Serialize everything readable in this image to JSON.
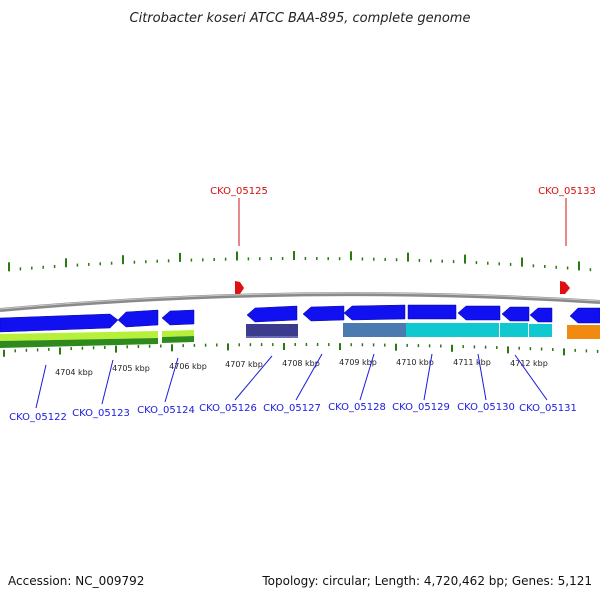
{
  "title": "Citrobacter koseri ATCC BAA-895, complete genome",
  "footer": {
    "accession": "Accession: NC_009792",
    "summary": "Topology: circular; Length: 4,720,462 bp; Genes: 5,121"
  },
  "colors": {
    "gene_blue": "#1010f0",
    "label_blue": "#1a1ae0",
    "highlight_red": "#d01010",
    "tick_green": "#2a7a12",
    "backbone_gray": "#8a8a8a",
    "green_light": "#b6f03a",
    "green_dark": "#2f8a1e",
    "indigo": "#3c3c8c",
    "steel": "#4a7ab0",
    "cyan": "#10c8d0",
    "orange": "#f08a10"
  },
  "scale_labels": [
    "4704 kbp",
    "4705 kbp",
    "4706 kbp",
    "4707 kbp",
    "4708 kbp",
    "4709 kbp",
    "4710 kbp",
    "4711 kbp",
    "4712 kbp"
  ],
  "highlight_genes": [
    "CKO_05125",
    "CKO_05133"
  ],
  "gene_labels": [
    "CKO_05122",
    "CKO_05123",
    "CKO_05124",
    "CKO_05126",
    "CKO_05127",
    "CKO_05128",
    "CKO_05129",
    "CKO_05130",
    "CKO_05131"
  ]
}
